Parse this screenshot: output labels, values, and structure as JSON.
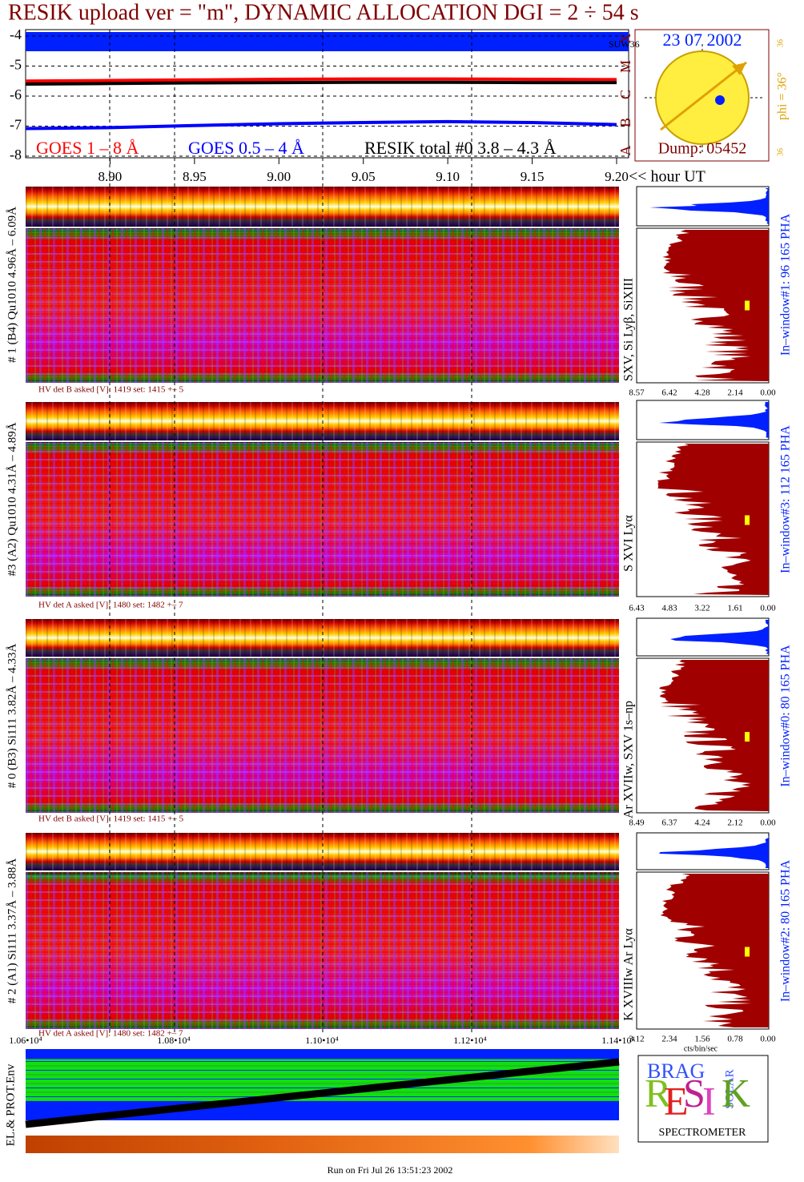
{
  "header": {
    "title": "RESIK upload ver = \"m\", DYNAMIC ALLOCATION  DGI =   2 ÷  54 s"
  },
  "chart_data": {
    "type": "line",
    "x": [
      8.85,
      8.9,
      8.95,
      9.0,
      9.05,
      9.1,
      9.15,
      9.2
    ],
    "series": [
      {
        "name": "GOES 1 – 8 Å",
        "color": "#ff0000",
        "values": [
          -5.5,
          -5.48,
          -5.46,
          -5.44,
          -5.43,
          -5.43,
          -5.44,
          -5.45
        ]
      },
      {
        "name": "GOES 0.5 – 4 Å",
        "color": "#0000ff",
        "values": [
          -7.08,
          -7.05,
          -6.98,
          -6.92,
          -6.88,
          -6.85,
          -6.88,
          -6.95
        ]
      },
      {
        "name": "RESIK total #0  3.8 – 4.3 Å",
        "color": "#000000",
        "values": [
          -5.6,
          -5.58,
          -5.56,
          -5.55,
          -5.54,
          -5.54,
          -5.55,
          -5.55
        ]
      }
    ],
    "xlim": [
      8.85,
      9.2
    ],
    "ylim": [
      -8,
      -4
    ],
    "xticks": [
      {
        "value": 8.9,
        "label": "8.90"
      },
      8.95,
      {
        "value": 9.0,
        "label": "9.00"
      },
      9.05,
      {
        "value": 9.1,
        "label": "9.10"
      },
      9.15,
      {
        "value": 9.2,
        "label": "9.20"
      }
    ],
    "yticks": [
      -4,
      -5,
      -6,
      -7,
      -8
    ],
    "x_label": "<< hour UT",
    "grid": true
  },
  "top_panel": {
    "tag": "SUW36",
    "goes_classes": [
      "A",
      "B",
      "C",
      "M",
      "X"
    ]
  },
  "sun_box": {
    "date": "23 07 2002",
    "dump": "Dump: 05452",
    "phi": "phi = 36°",
    "top": "36",
    "bottom": "36"
  },
  "detectors": [
    {
      "label": "# 1 (B4) Qu1010 4.96Å – 6.09Å",
      "hv": "HV det B asked [V]:  1419 set:  1415 +–    5",
      "lines": "SXV, Si Lyβ, SiXIII",
      "window": "In–window#1:   96 165  PHA",
      "pha_ticks": [
        "8.57",
        "6.42",
        "4.28",
        "2.14",
        "0.00"
      ]
    },
    {
      "label": "#3 (A2) Qu1010  4.31Å – 4.89Å",
      "hv": "HV det A asked [V]:  1480 set:  1482 +–    7",
      "lines": "S XVI Lyα",
      "window": "In–window#3:  112 165  PHA",
      "pha_ticks": [
        "6.43",
        "4.83",
        "3.22",
        "1.61",
        "0.00"
      ]
    },
    {
      "label": "# 0 (B3) Si111  3.82Å – 4.33Å",
      "hv": "HV det B asked [V]:  1419 set:  1415 +–    5",
      "lines": "Ar XVIIw,  SXV 1s–np",
      "window": "In–window#0:   80 165  PHA",
      "pha_ticks": [
        "8.49",
        "6.37",
        "4.24",
        "2.12",
        "0.00"
      ]
    },
    {
      "label": "# 2 (A1) Si111  3.37Å – 3.88Å",
      "hv": "HV det A asked [V]:  1480 set:  1482 +–    7",
      "lines": "K XVIIIw  Ar Lyα",
      "window": "In–window#2:   80 165  PHA",
      "pha_ticks": [
        "3.12",
        "2.34",
        "1.56",
        "0.78",
        "0.00"
      ]
    }
  ],
  "pha_units": "cts/bin/sec",
  "env_panel": {
    "label": "EL.& PROT.Env",
    "ticks": [
      "1.06•10⁴",
      "1.08•10⁴",
      "1.10•10⁴",
      "1.12•10⁴",
      "1.14•10⁴"
    ]
  },
  "logo": {
    "brag": "BRAG",
    "letters": [
      "R",
      "E",
      "S",
      "I",
      "K"
    ],
    "solar": "SOLAR",
    "name": "SPECTROMETER"
  },
  "footer": "Run on Fri Jul 26 13:51:23 2002"
}
